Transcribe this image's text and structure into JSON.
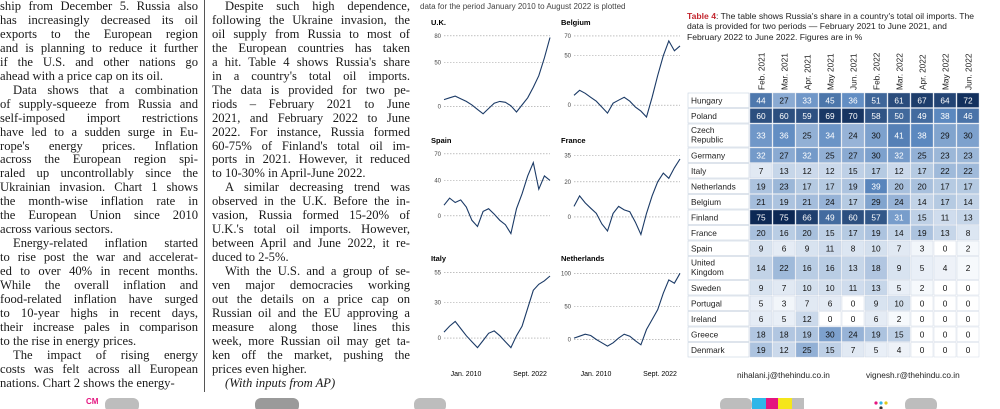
{
  "columns": [
    {
      "paragraphs": [
        [
          "ship from December 5. Russia also",
          "has increasingly decreased its oil",
          "exports to the European region",
          "and is planning to reduce it further",
          "if the U.S. and other nations go",
          "ahead with a price cap on its oil."
        ],
        [
          "Data shows that a combination",
          "of supply-squeeze from Russia and",
          "self-imposed import restrictions",
          "have led to a sudden surge in Eu-",
          "rope's energy prices. Inflation",
          "across the European region spi-",
          "raled up uncontrollably since the",
          "Ukrainian invasion. Chart 1 shows",
          "the month-wise inflation rate in",
          "the European Union since 2010",
          "across various sectors."
        ],
        [
          "Energy-related inflation started",
          "to rise post the war and accelerat-",
          "ed to over 40% in recent months.",
          "While the overall inflation and",
          "food-related inflation have surged",
          "to 10-year highs in recent days,",
          "their increase pales in comparison",
          "to the rise in energy prices."
        ],
        [
          "The impact of rising energy",
          "costs was felt across all European",
          "nations. Chart 2 shows the energy-"
        ]
      ]
    },
    {
      "paragraphs": [
        [
          "Despite such high dependence,",
          "following the Ukraine invasion, the",
          "oil supply from Russia to most of",
          "the European countries has taken",
          "a hit. Table 4 shows Russia's share",
          "in a country's total oil imports.",
          "The data is provided for two pe-",
          "riods – February 2021 to June",
          "2021, and February 2022 to June",
          "2022. For instance, Russia formed",
          "60-75% of Finland's total oil im-",
          "ports in 2021. However, it reduced",
          "to 10-30% in April-June 2022."
        ],
        [
          "A similar decreasing trend was",
          "observed in the U.K. Before the in-",
          "vasion, Russia formed 15-20% of",
          "U.K.'s total oil imports. However,",
          "between April and June 2022, it re-",
          "duced to 2-5%."
        ],
        [
          "With the U.S. and a group of se-",
          "ven major democracies working",
          "out the details on a price cap on",
          "Russian oil and the EU approving a",
          "measure along those lines this",
          "week, more Russian oil may get ta-",
          "ken off the market, pushing the",
          "prices even higher."
        ],
        [
          "(With inputs from AP)"
        ]
      ]
    }
  ],
  "chart_intro": "data for the period January 2010 to August 2022 is plotted",
  "x_labels": [
    "Jan. 2010",
    "Sept. 2022"
  ],
  "charts": [
    {
      "type": "line",
      "title": "U.K.",
      "color": "#1b3a66",
      "ylim": [
        -15,
        82
      ],
      "yticks": [
        0,
        50,
        80
      ],
      "values": [
        8,
        10,
        12,
        9,
        6,
        2,
        -3,
        -8,
        -2,
        4,
        6,
        5,
        1,
        -6,
        2,
        10,
        22,
        35,
        55,
        78
      ]
    },
    {
      "type": "line",
      "title": "Belgium",
      "color": "#1b3a66",
      "ylim": [
        -15,
        72
      ],
      "yticks": [
        0,
        50,
        70
      ],
      "values": [
        10,
        15,
        12,
        8,
        4,
        -2,
        -8,
        2,
        5,
        8,
        4,
        -2,
        -6,
        -12,
        8,
        30,
        50,
        65,
        55,
        60
      ]
    },
    {
      "type": "line",
      "title": "Spain",
      "color": "#1b3a66",
      "ylim": [
        -25,
        72
      ],
      "yticks": [
        0,
        40,
        70
      ],
      "values": [
        12,
        20,
        15,
        18,
        10,
        -5,
        -12,
        5,
        8,
        2,
        -5,
        -10,
        -20,
        8,
        25,
        45,
        60,
        30,
        45,
        40
      ]
    },
    {
      "type": "line",
      "title": "France",
      "color": "#1b3a66",
      "ylim": [
        -12,
        37
      ],
      "yticks": [
        0,
        20,
        35
      ],
      "values": [
        6,
        12,
        8,
        5,
        2,
        -4,
        -8,
        2,
        6,
        4,
        3,
        -3,
        -10,
        2,
        12,
        20,
        25,
        22,
        28,
        33
      ]
    },
    {
      "type": "line",
      "title": "Italy",
      "color": "#1b3a66",
      "ylim": [
        -15,
        57
      ],
      "yticks": [
        0,
        30,
        55
      ],
      "values": [
        5,
        10,
        14,
        8,
        2,
        -3,
        -8,
        -2,
        4,
        6,
        2,
        -3,
        -8,
        2,
        10,
        25,
        40,
        45,
        48,
        52
      ]
    },
    {
      "type": "line",
      "title": "Netherlands",
      "color": "#1b3a66",
      "ylim": [
        -25,
        105
      ],
      "yticks": [
        0,
        50,
        100
      ],
      "values": [
        2,
        5,
        8,
        6,
        0,
        -5,
        -10,
        -5,
        2,
        8,
        5,
        -2,
        -8,
        15,
        30,
        45,
        70,
        90,
        85,
        100
      ]
    }
  ],
  "table": {
    "caption_label": "Table 4",
    "caption_text": ": The table shows Russia's share in a country's total oil imports. The data is provided for two periods — February 2021 to June 2021, and February 2022 to June 2022. Figures are in %",
    "columns": [
      "Feb. 2021",
      "Mar. 2021",
      "Apr. 2021",
      "May 2021",
      "Jun. 2021",
      "Feb. 2022",
      "Mar. 2022",
      "Apr. 2022",
      "May 2022",
      "Jun. 2022"
    ],
    "rows": [
      {
        "name": "Hungary",
        "values": [
          44,
          27,
          33,
          45,
          36,
          51,
          61,
          67,
          64,
          72
        ]
      },
      {
        "name": "Poland",
        "values": [
          60,
          60,
          59,
          69,
          70,
          58,
          50,
          49,
          38,
          46
        ]
      },
      {
        "name": "Czech Republic",
        "values": [
          33,
          36,
          25,
          34,
          24,
          30,
          41,
          38,
          29,
          30
        ]
      },
      {
        "name": "Germany",
        "values": [
          32,
          27,
          32,
          25,
          27,
          30,
          32,
          25,
          23,
          23
        ]
      },
      {
        "name": "Italy",
        "values": [
          7,
          13,
          12,
          12,
          15,
          17,
          12,
          17,
          22,
          22
        ]
      },
      {
        "name": "Netherlands",
        "values": [
          19,
          23,
          17,
          17,
          19,
          39,
          20,
          20,
          17,
          17
        ]
      },
      {
        "name": "Belgium",
        "values": [
          21,
          19,
          21,
          24,
          17,
          29,
          24,
          14,
          17,
          14
        ]
      },
      {
        "name": "Finland",
        "values": [
          75,
          75,
          66,
          49,
          60,
          57,
          31,
          15,
          11,
          13
        ]
      },
      {
        "name": "France",
        "values": [
          20,
          16,
          20,
          15,
          17,
          19,
          14,
          19,
          13,
          8
        ]
      },
      {
        "name": "Spain",
        "values": [
          9,
          6,
          9,
          11,
          8,
          10,
          7,
          3,
          0,
          2
        ]
      },
      {
        "name": "United Kingdom",
        "values": [
          14,
          22,
          16,
          16,
          13,
          18,
          9,
          5,
          4,
          2
        ]
      },
      {
        "name": "Sweden",
        "values": [
          9,
          7,
          10,
          10,
          11,
          13,
          5,
          2,
          0,
          0
        ]
      },
      {
        "name": "Portugal",
        "values": [
          5,
          3,
          7,
          6,
          0,
          9,
          10,
          0,
          0,
          0
        ]
      },
      {
        "name": "Ireland",
        "values": [
          6,
          5,
          12,
          0,
          0,
          6,
          2,
          0,
          0,
          0
        ]
      },
      {
        "name": "Greece",
        "values": [
          18,
          18,
          19,
          30,
          24,
          19,
          15,
          0,
          0,
          0
        ]
      },
      {
        "name": "Denmark",
        "values": [
          19,
          12,
          25,
          15,
          7,
          5,
          4,
          0,
          0,
          0
        ]
      }
    ]
  },
  "emails": [
    "nihalani.j@thehindu.co.in",
    "vignesh.r@thehindu.co.in"
  ],
  "print_mark": "CM"
}
